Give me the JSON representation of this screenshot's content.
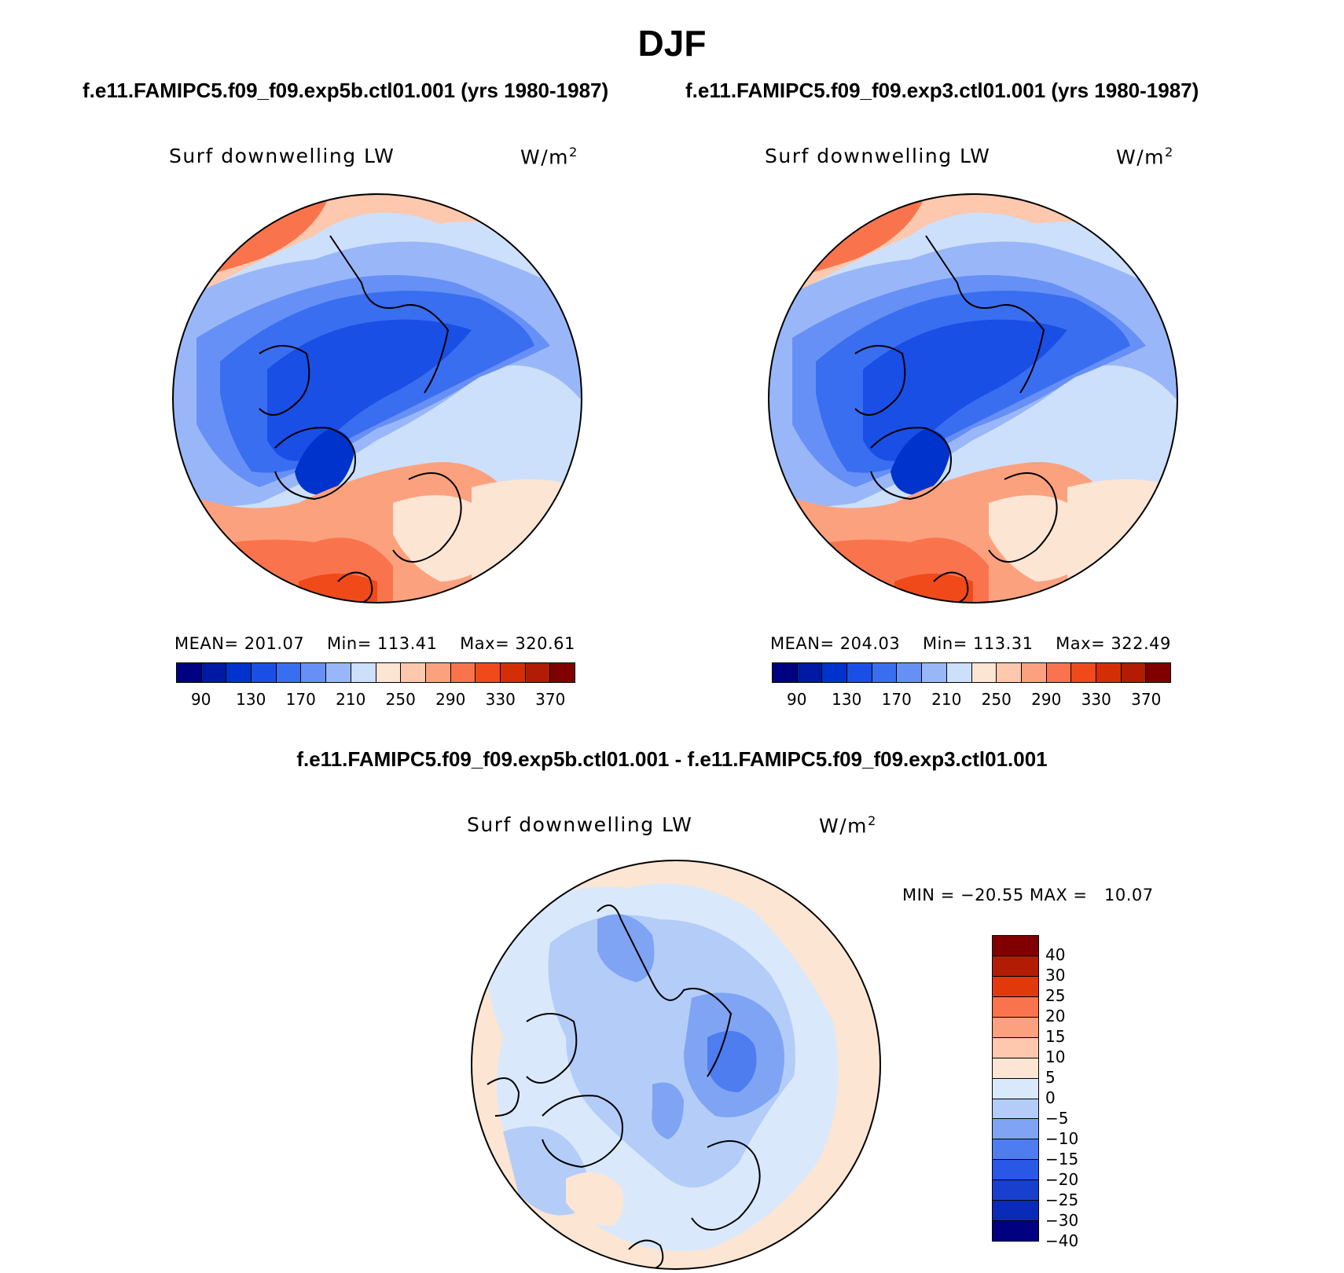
{
  "title": "DJF",
  "panels": [
    {
      "case_title": "f.e11.FAMIPC5.f09_f09.exp5b.ctl01.001 (yrs 1980-1987)",
      "variable": "Surf downwelling LW",
      "units": "W/m",
      "units_sup": "2",
      "stats": {
        "mean_label": "MEAN=",
        "mean": "201.07",
        "min_label": "Min=",
        "min": "113.41",
        "max_label": "Max=",
        "max": "320.61"
      }
    },
    {
      "case_title": "f.e11.FAMIPC5.f09_f09.exp3.ctl01.001 (yrs 1980-1987)",
      "variable": "Surf downwelling LW",
      "units": "W/m",
      "units_sup": "2",
      "stats": {
        "mean_label": "MEAN=",
        "mean": "204.03",
        "min_label": "Min=",
        "min": "113.31",
        "max_label": "Max=",
        "max": "322.49"
      }
    }
  ],
  "colorbar_abs": {
    "colors": [
      "#000080",
      "#0019a5",
      "#0033cc",
      "#1a4fe6",
      "#3a6ef0",
      "#6690f5",
      "#99b7f8",
      "#cce0fb",
      "#fde5d3",
      "#fdc8ae",
      "#fca17e",
      "#f9744d",
      "#f04a1a",
      "#d42e07",
      "#b21c04",
      "#800000"
    ],
    "labels": [
      "90",
      "130",
      "170",
      "210",
      "250",
      "290",
      "330",
      "370"
    ]
  },
  "diff": {
    "title": "f.e11.FAMIPC5.f09_f09.exp5b.ctl01.001 - f.e11.FAMIPC5.f09_f09.exp3.ctl01.001",
    "variable": "Surf downwelling LW",
    "units": "W/m",
    "units_sup": "2",
    "minmax": "MIN = −20.55 MAX =   10.07",
    "colorbar": {
      "colors": [
        "#800000",
        "#b21c04",
        "#e03a0c",
        "#f9744d",
        "#fca17e",
        "#fdc8ae",
        "#fde5d3",
        "#d9e9fb",
        "#b3cdf8",
        "#7fa4f3",
        "#4d7def",
        "#2958e6",
        "#1940cc",
        "#0a2bb8",
        "#000080"
      ],
      "labels": [
        "40",
        "30",
        "25",
        "20",
        "15",
        "10",
        "5",
        "0",
        "−5",
        "−10",
        "−15",
        "−20",
        "−25",
        "−30",
        "−40"
      ]
    }
  },
  "chart_data": [
    {
      "type": "heatmap",
      "projection": "north polar stereographic",
      "title": "f.e11.FAMIPC5.f09_f09.exp5b.ctl01.001 (yrs 1980-1987)",
      "variable": "Surf downwelling LW",
      "units": "W/m2",
      "mean": 201.07,
      "min": 113.41,
      "max": 320.61,
      "contour_levels": [
        90,
        110,
        130,
        150,
        170,
        190,
        210,
        230,
        250,
        270,
        290,
        310,
        330,
        350,
        370
      ]
    },
    {
      "type": "heatmap",
      "projection": "north polar stereographic",
      "title": "f.e11.FAMIPC5.f09_f09.exp3.ctl01.001 (yrs 1980-1987)",
      "variable": "Surf downwelling LW",
      "units": "W/m2",
      "mean": 204.03,
      "min": 113.31,
      "max": 322.49,
      "contour_levels": [
        90,
        110,
        130,
        150,
        170,
        190,
        210,
        230,
        250,
        270,
        290,
        310,
        330,
        350,
        370
      ]
    },
    {
      "type": "heatmap",
      "projection": "north polar stereographic",
      "title": "f.e11.FAMIPC5.f09_f09.exp5b.ctl01.001 - f.e11.FAMIPC5.f09_f09.exp3.ctl01.001",
      "variable": "Surf downwelling LW",
      "units": "W/m2",
      "min": -20.55,
      "max": 10.07,
      "contour_levels": [
        -40,
        -30,
        -25,
        -20,
        -15,
        -10,
        -5,
        0,
        5,
        10,
        15,
        20,
        25,
        30,
        40
      ]
    }
  ]
}
